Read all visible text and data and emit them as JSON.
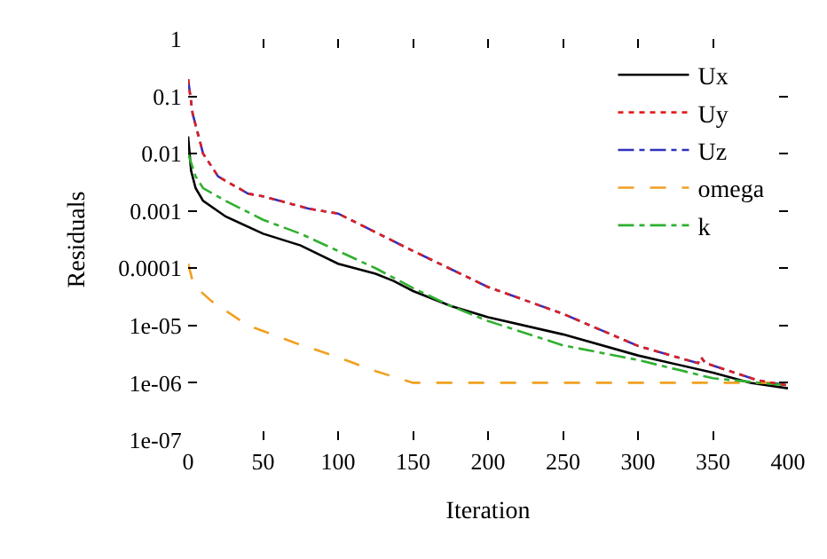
{
  "chart_data": {
    "type": "line",
    "xlabel": "Iteration",
    "ylabel": "Residuals",
    "log": "y",
    "legend": "top right",
    "marker": "none",
    "xlim": [
      0,
      400
    ],
    "xticks": [
      0,
      50,
      100,
      150,
      200,
      250,
      300,
      350,
      400
    ],
    "ylim": [
      1e-07,
      1
    ],
    "yticks": [
      {
        "value": 1e-07,
        "label": "1e-07"
      },
      {
        "value": 1e-06,
        "label": "1e-06"
      },
      {
        "value": 1e-05,
        "label": "1e-05"
      },
      {
        "value": 0.0001,
        "label": "0.0001"
      },
      {
        "value": 0.001,
        "label": "0.001"
      },
      {
        "value": 0.01,
        "label": "0.01"
      },
      {
        "value": 0.1,
        "label": "0.1"
      },
      {
        "value": 1,
        "label": "1"
      }
    ],
    "series": [
      {
        "name": "Ux",
        "color": "#000000",
        "line_style": "solid",
        "x": [
          0,
          2,
          5,
          10,
          25,
          50,
          75,
          100,
          125,
          137,
          150,
          175,
          200,
          250,
          300,
          350,
          375,
          400
        ],
        "values": [
          0.02,
          0.005,
          0.0025,
          0.0015,
          0.0008,
          0.0004,
          0.00025,
          0.00012,
          8e-05,
          6e-05,
          4e-05,
          2.2e-05,
          1.4e-05,
          7e-06,
          3e-06,
          1.5e-06,
          1e-06,
          8e-07
        ]
      },
      {
        "name": "Uy",
        "color": "#e0201c",
        "line_style": "dotted",
        "x": [
          0,
          3,
          10,
          20,
          40,
          50,
          80,
          100,
          150,
          200,
          250,
          300,
          340,
          342,
          345,
          350,
          380,
          400
        ],
        "values": [
          0.2,
          0.05,
          0.01,
          0.004,
          0.002,
          0.0018,
          0.0011,
          0.0009,
          0.0002,
          4.7e-05,
          1.6e-05,
          4.4e-06,
          2.2e-06,
          2.8e-06,
          2.2e-06,
          2e-06,
          1.1e-06,
          9e-07
        ]
      },
      {
        "name": "Uz",
        "color": "#3030c0",
        "line_style": "dashdot",
        "x": [
          0,
          3,
          10,
          20,
          40,
          50,
          80,
          100,
          150,
          200,
          250,
          300,
          340,
          342,
          345,
          350,
          380,
          400
        ],
        "values": [
          0.2,
          0.05,
          0.01,
          0.004,
          0.002,
          0.0018,
          0.0011,
          0.0009,
          0.0002,
          4.7e-05,
          1.6e-05,
          4.4e-06,
          2.2e-06,
          2.8e-06,
          2.2e-06,
          2e-06,
          1.1e-06,
          9e-07
        ]
      },
      {
        "name": "omega",
        "color": "#f0a020",
        "line_style": "dashed",
        "x": [
          0,
          3,
          8,
          16,
          40,
          71,
          100,
          125,
          150,
          200,
          300,
          400
        ],
        "values": [
          0.00012,
          6e-05,
          4e-05,
          2.6e-05,
          1e-05,
          5e-06,
          2.8e-06,
          1.6e-06,
          1e-06,
          1e-06,
          1e-06,
          1e-06
        ]
      },
      {
        "name": "k",
        "color": "#30b030",
        "line_style": "dashdot",
        "x": [
          0,
          5,
          10,
          25,
          50,
          75,
          100,
          125,
          150,
          175,
          200,
          250,
          300,
          350,
          400
        ],
        "values": [
          0.01,
          0.004,
          0.0025,
          0.0015,
          0.0007,
          0.0004,
          0.0002,
          0.0001,
          4.5e-05,
          2.2e-05,
          1.2e-05,
          4.5e-06,
          2.5e-06,
          1.2e-06,
          9e-07
        ]
      }
    ]
  }
}
